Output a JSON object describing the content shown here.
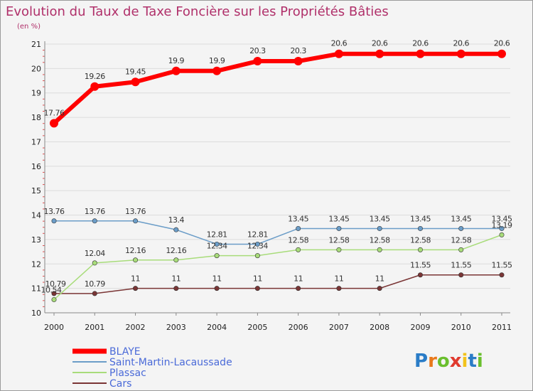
{
  "chart_data": {
    "type": "line",
    "title": "Evolution du Taux de Taxe Foncière sur les Propriétés Bâties",
    "subtitle": "(en %)",
    "xlabel": "",
    "ylabel": "",
    "ylim": [
      10,
      21
    ],
    "yticks": [
      "10",
      "11",
      "12",
      "13",
      "14",
      "15",
      "16",
      "17",
      "18",
      "19",
      "20",
      "21"
    ],
    "categories": [
      "2000",
      "2001",
      "2002",
      "2003",
      "2004",
      "2005",
      "2006",
      "2007",
      "2008",
      "2009",
      "2010",
      "2011"
    ],
    "series": [
      {
        "name": "BLAYE",
        "color": "#ff0000",
        "values": [
          17.76,
          19.26,
          19.45,
          19.9,
          19.9,
          20.3,
          20.3,
          20.6,
          20.6,
          20.6,
          20.6,
          20.6
        ],
        "labels": [
          "17.76",
          "19.26",
          "19.45",
          "19.9",
          "19.9",
          "20.3",
          "20.3",
          "20.6",
          "20.6",
          "20.6",
          "20.6",
          "20.6"
        ]
      },
      {
        "name": "Saint-Martin-Lacaussade",
        "color": "#6b9dc8",
        "values": [
          13.76,
          13.76,
          13.76,
          13.4,
          12.81,
          12.81,
          13.45,
          13.45,
          13.45,
          13.45,
          13.45,
          13.45
        ],
        "labels": [
          "13.76",
          "13.76",
          "13.76",
          "13.4",
          "12.81",
          "12.81",
          "13.45",
          "13.45",
          "13.45",
          "13.45",
          "13.45",
          "13.45"
        ]
      },
      {
        "name": "Plassac",
        "color": "#a8dc7a",
        "values": [
          10.54,
          12.04,
          12.16,
          12.16,
          12.34,
          12.34,
          12.58,
          12.58,
          12.58,
          12.58,
          12.58,
          13.19
        ],
        "labels": [
          "10.54",
          "12.04",
          "12.16",
          "12.16",
          "12.34",
          "12.34",
          "12.58",
          "12.58",
          "12.58",
          "12.58",
          "12.58",
          "13.19"
        ]
      },
      {
        "name": "Cars",
        "color": "#7a3535",
        "values": [
          10.79,
          10.79,
          11,
          11,
          11,
          11,
          11,
          11,
          11,
          11.55,
          11.55,
          11.55
        ],
        "labels": [
          "10.79",
          "10.79",
          "11",
          "11",
          "11",
          "11",
          "11",
          "11",
          "11",
          "11.55",
          "11.55",
          "11.55"
        ]
      }
    ],
    "legend_position": "bottom-left"
  },
  "logo": {
    "text": "Proxiti",
    "letter_colors": [
      "#2a7cc7",
      "#e8781a",
      "#6abf2e",
      "#e03a2e",
      "#f2c21b",
      "#2a7cc7",
      "#6abf2e"
    ]
  }
}
